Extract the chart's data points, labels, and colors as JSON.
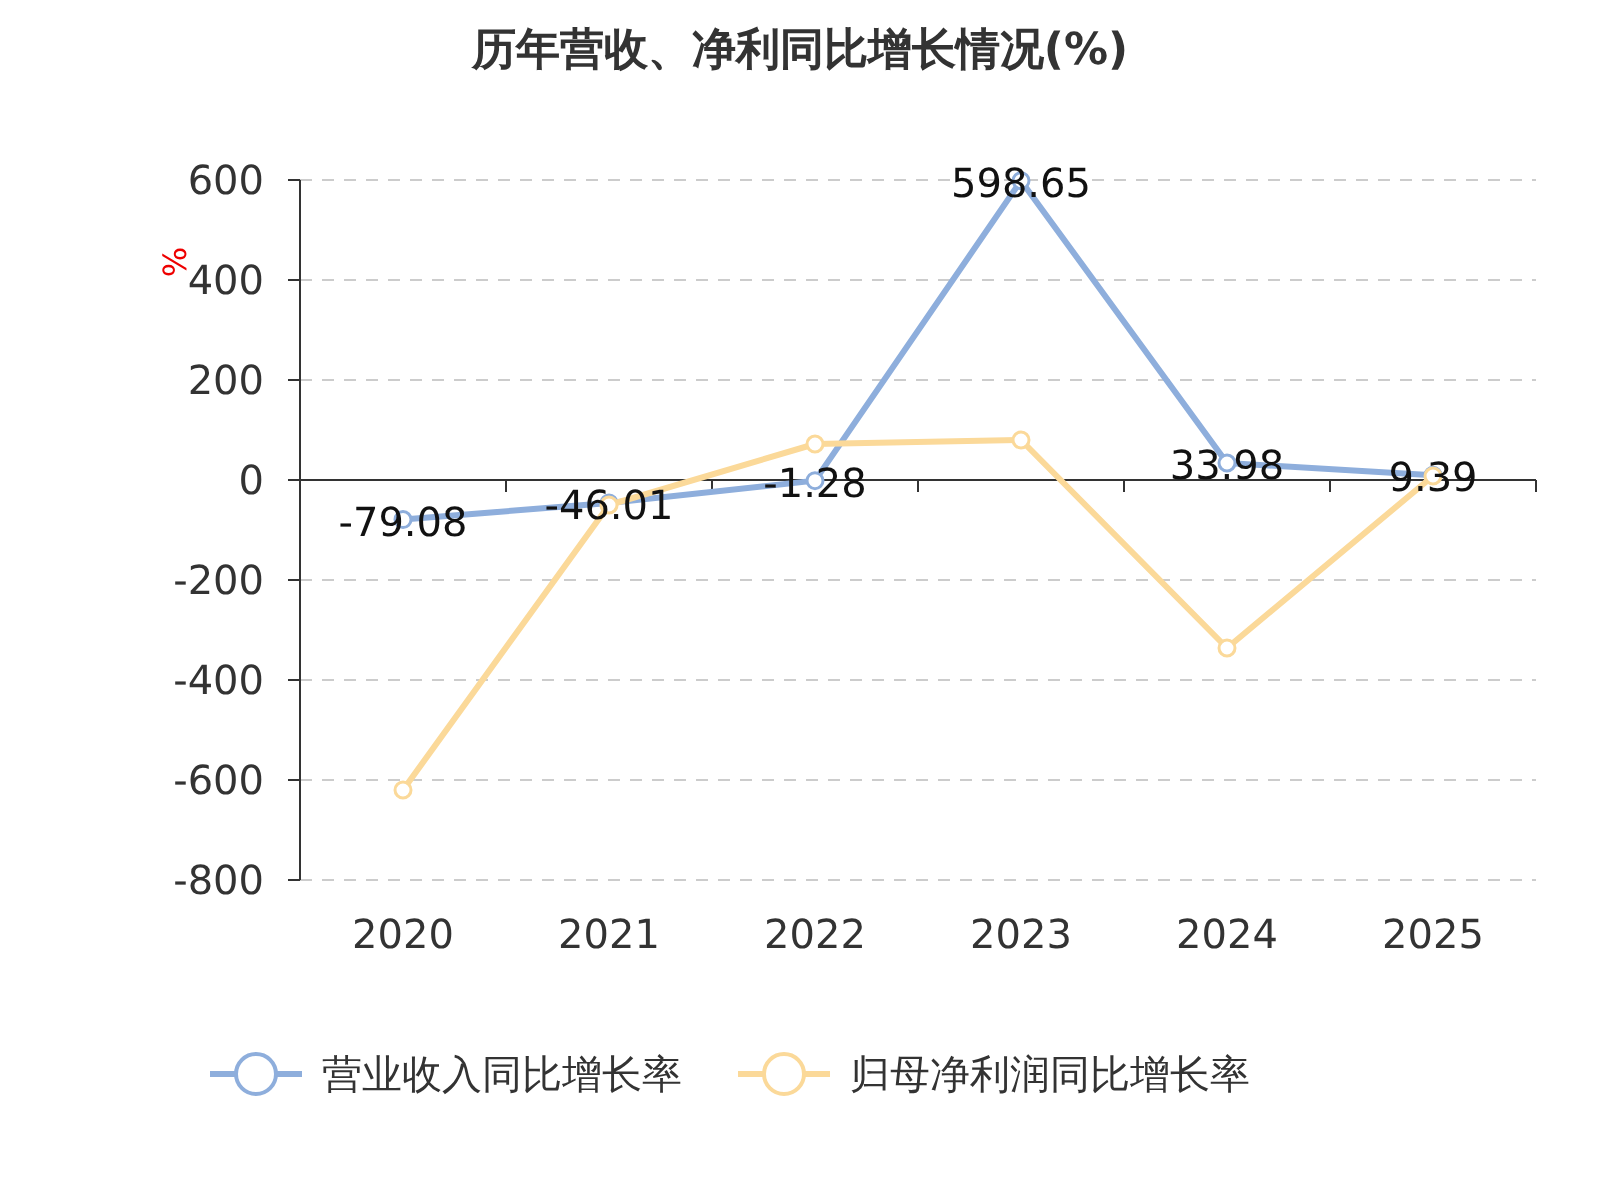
{
  "chart_data": {
    "type": "line",
    "title": "历年营收、净利同比增长情况(%)",
    "ylabel": "%",
    "categories": [
      "2020",
      "2021",
      "2022",
      "2023",
      "2024",
      "2025"
    ],
    "series": [
      {
        "name": "营业收入同比增长率",
        "color": "#8eaedc",
        "values": [
          -79.08,
          -46.01,
          -1.28,
          598.65,
          33.98,
          9.39
        ],
        "value_labels": [
          "-79.08",
          "-46.01",
          "-1.28",
          "598.65",
          "33.98",
          "9.39"
        ]
      },
      {
        "name": "归母净利润同比增长率",
        "color": "#fbd999",
        "values": [
          -620,
          -50,
          72,
          80,
          -336,
          8
        ]
      }
    ],
    "ylim": [
      -800,
      600
    ],
    "yticks": [
      -800,
      -600,
      -400,
      -200,
      0,
      200,
      400,
      600
    ],
    "grid": "y",
    "legend": "bottom",
    "marker": "circle",
    "line_style": "solid"
  }
}
